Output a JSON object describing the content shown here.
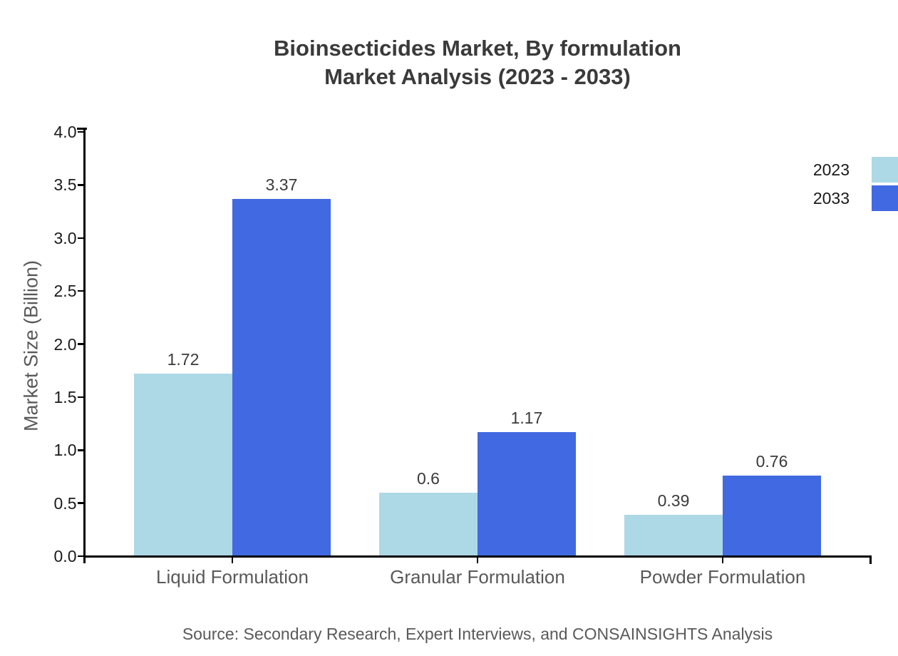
{
  "title": {
    "line1": "Bioinsecticides Market, By formulation",
    "line2": "Market Analysis (2023 - 2033)"
  },
  "source": "Source: Secondary Research, Expert Interviews, and CONSAINSIGHTS Analysis",
  "chart_data": {
    "type": "bar",
    "title": "Bioinsecticides Market, By formulation Market Analysis (2023 - 2033)",
    "categories": [
      "Liquid Formulation",
      "Granular Formulation",
      "Powder Formulation"
    ],
    "series": [
      {
        "name": "2023",
        "color": "#ADD8E6",
        "values": [
          1.72,
          0.6,
          0.39
        ]
      },
      {
        "name": "2033",
        "color": "#4169E1",
        "values": [
          3.37,
          1.17,
          0.76
        ]
      }
    ],
    "xlabel": "",
    "ylabel": "Market Size (Billion)",
    "ylim": [
      0,
      4
    ],
    "ytick_step": 0.5,
    "yticks": [
      "0.0",
      "0.5",
      "1.0",
      "1.5",
      "2.0",
      "2.5",
      "3.0",
      "3.5",
      "4.0"
    ],
    "grid": false,
    "legend_position": "top-right"
  },
  "colors": {
    "series_2023": "#ADD8E6",
    "series_2033": "#4169E1",
    "axis": "#000000",
    "tick_label": "#1a1a1a",
    "muted_text": "#595959",
    "title_text": "#3a3a3a",
    "background": "#ffffff"
  }
}
